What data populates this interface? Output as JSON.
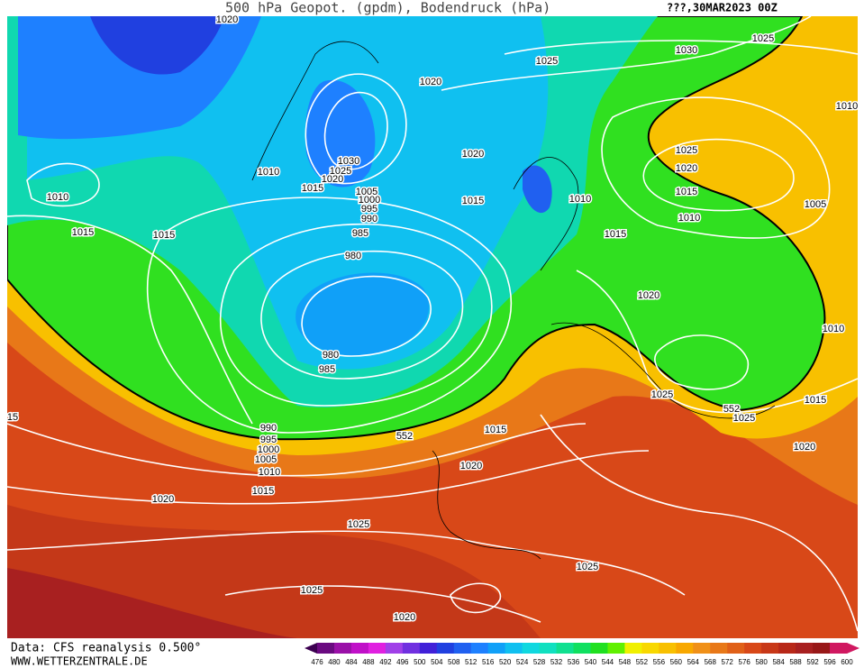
{
  "header": {
    "title": "500 hPa Geopot. (gpdm), Bodendruck (hPa)",
    "date": "???,30MAR2023 00Z"
  },
  "footer": {
    "source": "Data: CFS reanalysis 0.500°",
    "site": "WWW.WETTERZENTRALE.DE"
  },
  "isobar_labels": [
    "1020",
    "1025",
    "1030",
    "1025",
    "1020",
    "1010",
    "1030",
    "1025",
    "1020",
    "1015",
    "1005",
    "1000",
    "995",
    "990",
    "985",
    "980",
    "1010",
    "1010",
    "1015",
    "1015",
    "1020",
    "1015",
    "1010",
    "1015",
    "1025",
    "1020",
    "1015",
    "1010",
    "1005",
    "1020",
    "1010",
    "980",
    "985",
    "15",
    "1025",
    "1015",
    "1025",
    "552",
    "552",
    "990",
    "995",
    "1000",
    "1005",
    "1010",
    "1015",
    "1015",
    "1020",
    "1020",
    "1020",
    "1025",
    "1025",
    "1025",
    "1020"
  ],
  "colorbar": {
    "labels": [
      476,
      480,
      484,
      488,
      492,
      496,
      500,
      504,
      508,
      512,
      516,
      520,
      524,
      528,
      532,
      536,
      540,
      544,
      548,
      552,
      556,
      560,
      564,
      568,
      572,
      576,
      580,
      584,
      588,
      592,
      596,
      600
    ],
    "colors": [
      "#3c0050",
      "#6a0a80",
      "#9a10a8",
      "#c010c8",
      "#e020e0",
      "#a040e8",
      "#7030e0",
      "#4020d8",
      "#2040e0",
      "#2060f0",
      "#1e80ff",
      "#10a0f8",
      "#10c0f0",
      "#10d8e0",
      "#10e0c0",
      "#10e090",
      "#10e060",
      "#20e020",
      "#60f000",
      "#f0f000",
      "#f8d800",
      "#f8c000",
      "#f8a800",
      "#f09018",
      "#e87818",
      "#e06018",
      "#d84818",
      "#c83818",
      "#b82818",
      "#a82020",
      "#981818",
      "#d01860"
    ]
  }
}
